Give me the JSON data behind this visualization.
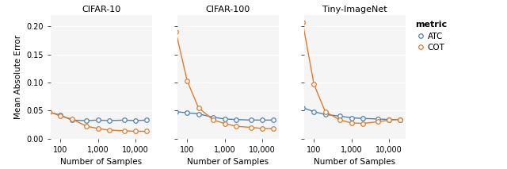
{
  "x_values": [
    50,
    100,
    200,
    500,
    1000,
    2000,
    5000,
    10000,
    20000
  ],
  "panels": [
    {
      "title": "CIFAR-10",
      "ATC": [
        0.047,
        0.042,
        0.033,
        0.032,
        0.033,
        0.032,
        0.033,
        0.032,
        0.033
      ],
      "COT": [
        0.048,
        0.04,
        0.035,
        0.022,
        0.018,
        0.015,
        0.014,
        0.013,
        0.013
      ]
    },
    {
      "title": "CIFAR-100",
      "ATC": [
        0.048,
        0.046,
        0.044,
        0.038,
        0.035,
        0.034,
        0.033,
        0.033,
        0.033
      ],
      "COT": [
        0.19,
        0.103,
        0.055,
        0.033,
        0.027,
        0.022,
        0.02,
        0.018,
        0.018
      ]
    },
    {
      "title": "Tiny-ImageNet",
      "ATC": [
        0.055,
        0.048,
        0.043,
        0.04,
        0.037,
        0.036,
        0.035,
        0.034,
        0.034
      ],
      "COT": [
        0.207,
        0.097,
        0.048,
        0.033,
        0.028,
        0.027,
        0.03,
        0.033,
        0.034
      ]
    }
  ],
  "atc_color": "#4E82B8",
  "cot_color": "#E07B2A",
  "ylabel": "Mean Absolute Error",
  "xlabel": "Number of Samples",
  "ylim": [
    0.0,
    0.22
  ],
  "yticks": [
    0.0,
    0.05,
    0.1,
    0.15,
    0.2
  ],
  "legend_title": "metric",
  "legend_labels": [
    "ATC",
    "COT"
  ],
  "marker": "o",
  "marker_size": 4,
  "line_width": 1.0,
  "background_color": "#ffffff",
  "panel_bg": "#f5f5f5",
  "grid_color": "#ffffff"
}
